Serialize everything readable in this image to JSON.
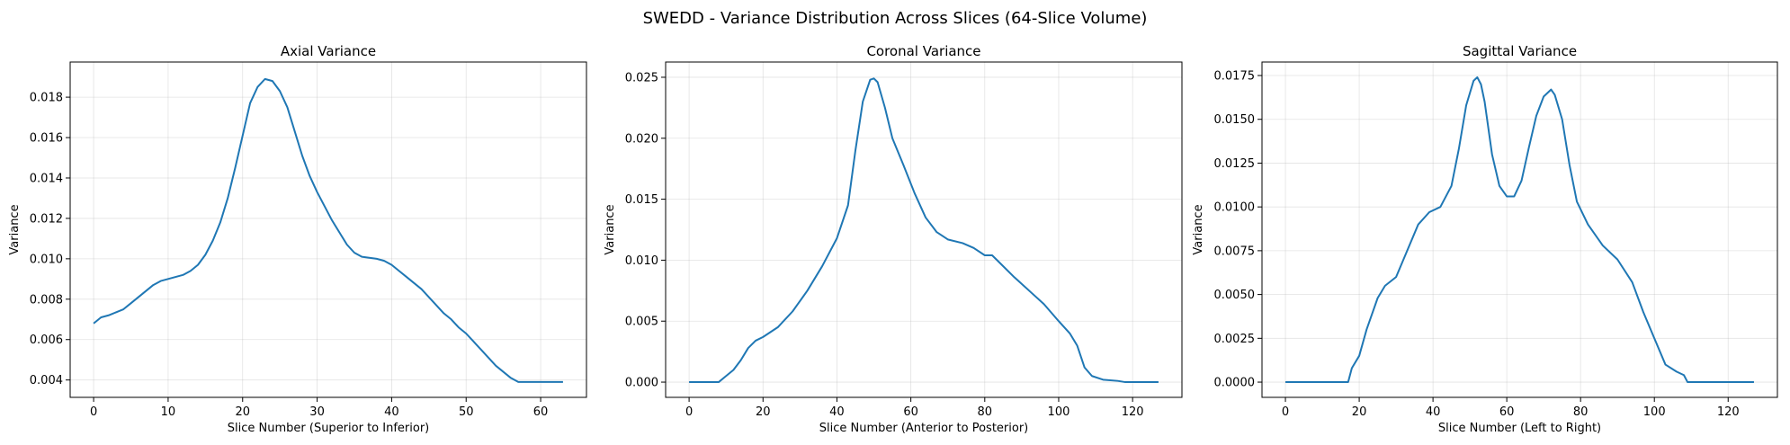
{
  "figure": {
    "suptitle": "SWEDD - Variance Distribution Across Slices (64-Slice Volume)"
  },
  "colors": {
    "line": "#1f77b4"
  },
  "chart_data": [
    {
      "type": "line",
      "title": "Axial Variance",
      "xlabel": "Slice Number (Superior to Inferior)",
      "ylabel": "Variance",
      "xlim": [
        -3.15,
        66.15
      ],
      "ylim": [
        0.00314,
        0.01974
      ],
      "xticks": [
        0,
        10,
        20,
        30,
        40,
        50,
        60
      ],
      "xtick_labels": [
        "0",
        "10",
        "20",
        "30",
        "40",
        "50",
        "60"
      ],
      "yticks": [
        0.004,
        0.006,
        0.008,
        0.01,
        0.012,
        0.014,
        0.016,
        0.018
      ],
      "ytick_labels": [
        "0.004",
        "0.006",
        "0.008",
        "0.010",
        "0.012",
        "0.014",
        "0.016",
        "0.018"
      ],
      "grid": true,
      "x": [
        0,
        1,
        2,
        3,
        4,
        5,
        6,
        7,
        8,
        9,
        10,
        11,
        12,
        13,
        14,
        15,
        16,
        17,
        18,
        19,
        20,
        21,
        22,
        23,
        24,
        25,
        26,
        27,
        28,
        29,
        30,
        31,
        32,
        33,
        34,
        35,
        36,
        37,
        38,
        39,
        40,
        41,
        42,
        43,
        44,
        45,
        46,
        47,
        48,
        49,
        50,
        51,
        52,
        53,
        54,
        55,
        56,
        57,
        58,
        59,
        60,
        61,
        62,
        63
      ],
      "y": [
        0.0068,
        0.0071,
        0.0072,
        0.00735,
        0.0075,
        0.0078,
        0.0081,
        0.0084,
        0.0087,
        0.0089,
        0.009,
        0.0091,
        0.0092,
        0.0094,
        0.0097,
        0.0102,
        0.0109,
        0.0118,
        0.013,
        0.0145,
        0.0161,
        0.0177,
        0.0185,
        0.0189,
        0.0188,
        0.0183,
        0.0175,
        0.0163,
        0.0151,
        0.0141,
        0.0133,
        0.0126,
        0.0119,
        0.0113,
        0.0107,
        0.0103,
        0.0101,
        0.01005,
        0.01,
        0.0099,
        0.0097,
        0.0094,
        0.0091,
        0.0088,
        0.0085,
        0.0081,
        0.0077,
        0.0073,
        0.007,
        0.0066,
        0.0063,
        0.0059,
        0.0055,
        0.0051,
        0.0047,
        0.0044,
        0.0041,
        0.0039,
        0.0039,
        0.0039,
        0.0039,
        0.0039,
        0.0039,
        0.0039
      ]
    },
    {
      "type": "line",
      "title": "Coronal Variance",
      "xlabel": "Slice Number (Anterior to Posterior)",
      "ylabel": "Variance",
      "xlim": [
        -6.35,
        133.35
      ],
      "ylim": [
        -0.00125,
        0.02625
      ],
      "xticks": [
        0,
        20,
        40,
        60,
        80,
        100,
        120
      ],
      "xtick_labels": [
        "0",
        "20",
        "40",
        "60",
        "80",
        "100",
        "120"
      ],
      "yticks": [
        0.0,
        0.005,
        0.01,
        0.015,
        0.02,
        0.025
      ],
      "ytick_labels": [
        "0.000",
        "0.005",
        "0.010",
        "0.015",
        "0.020",
        "0.025"
      ],
      "grid": true,
      "x": [
        0,
        8,
        10,
        12,
        14,
        16,
        18,
        20,
        24,
        28,
        32,
        36,
        40,
        43,
        45,
        47,
        49,
        50,
        51,
        53,
        55,
        58,
        61,
        64,
        67,
        70,
        74,
        77,
        80,
        82,
        84,
        88,
        92,
        96,
        100,
        103,
        105,
        107,
        109,
        112,
        116,
        118,
        122,
        127
      ],
      "y": [
        0.0,
        0.0,
        0.0005,
        0.001,
        0.0018,
        0.0028,
        0.0034,
        0.0037,
        0.0045,
        0.0058,
        0.0075,
        0.0095,
        0.0118,
        0.0145,
        0.019,
        0.023,
        0.0248,
        0.0249,
        0.0246,
        0.0225,
        0.02,
        0.0178,
        0.0155,
        0.0135,
        0.0123,
        0.0117,
        0.0114,
        0.011,
        0.0104,
        0.0104,
        0.0098,
        0.0086,
        0.0075,
        0.0064,
        0.005,
        0.004,
        0.003,
        0.0012,
        0.0005,
        0.0002,
        0.0001,
        0.0,
        0.0,
        0.0
      ]
    },
    {
      "type": "line",
      "title": "Sagittal Variance",
      "xlabel": "Slice Number (Left to Right)",
      "ylabel": "Variance",
      "xlim": [
        -6.35,
        133.35
      ],
      "ylim": [
        -0.00087,
        0.01827
      ],
      "xticks": [
        0,
        20,
        40,
        60,
        80,
        100,
        120
      ],
      "xtick_labels": [
        "0",
        "20",
        "40",
        "60",
        "80",
        "100",
        "120"
      ],
      "yticks": [
        0.0,
        0.0025,
        0.005,
        0.0075,
        0.01,
        0.0125,
        0.015,
        0.0175
      ],
      "ytick_labels": [
        "0.0000",
        "0.0025",
        "0.0050",
        "0.0075",
        "0.0100",
        "0.0125",
        "0.0150",
        "0.0175"
      ],
      "grid": true,
      "x": [
        0,
        17,
        18,
        20,
        22,
        25,
        27,
        30,
        33,
        36,
        39,
        42,
        45,
        47,
        49,
        51,
        52,
        53,
        54,
        56,
        58,
        60,
        62,
        64,
        66,
        68,
        70,
        72,
        73,
        75,
        77,
        79,
        82,
        86,
        90,
        94,
        97,
        100,
        103,
        106,
        108,
        109,
        115,
        127
      ],
      "y": [
        0.0,
        0.0,
        0.0008,
        0.0015,
        0.003,
        0.0048,
        0.0055,
        0.006,
        0.0075,
        0.009,
        0.0097,
        0.01,
        0.0112,
        0.0133,
        0.0158,
        0.0172,
        0.0174,
        0.017,
        0.016,
        0.013,
        0.0112,
        0.0106,
        0.0106,
        0.0115,
        0.0134,
        0.0152,
        0.0163,
        0.0167,
        0.0164,
        0.015,
        0.0124,
        0.0103,
        0.009,
        0.0078,
        0.007,
        0.0057,
        0.004,
        0.0025,
        0.001,
        0.0006,
        0.0004,
        0.0,
        0.0,
        0.0
      ]
    }
  ]
}
